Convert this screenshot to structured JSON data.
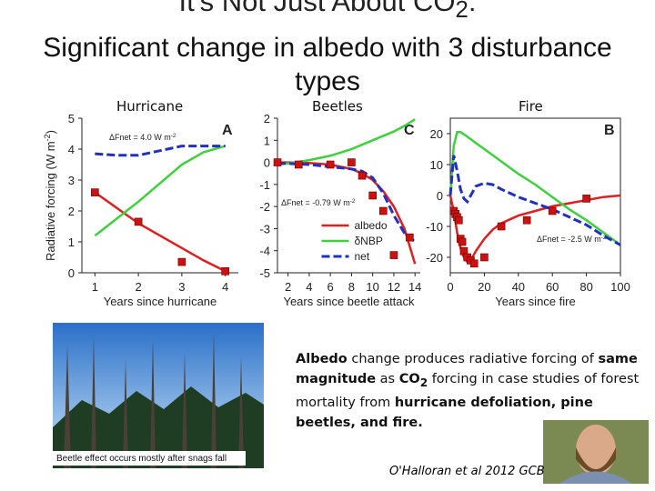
{
  "slide": {
    "title": [
      {
        "text": "It's Not Just About CO"
      },
      {
        "text": "2",
        "sub": true
      },
      {
        "text": ":"
      }
    ],
    "subtitle": "Significant change in albedo with 3 disturbance types",
    "panel_labels": [
      "Hurricane",
      "Beetles",
      "Fire"
    ],
    "photo_caption": "Beetle effect occurs mostly after snags fall",
    "summary": [
      {
        "text": "Albedo",
        "bold": true
      },
      {
        "text": " change produces radiative forcing of "
      },
      {
        "text": "same magnitude",
        "bold": true
      },
      {
        "text": " as "
      },
      {
        "text": "CO",
        "bold": true
      },
      {
        "text": "2",
        "bold": true,
        "sub": true
      },
      {
        "text": " forcing in case studies of forest mortality from "
      },
      {
        "text": "hurricane defoliation, pine beetles, and fire.",
        "bold": true
      }
    ],
    "citation": "O'Halloran et al 2012 GCB"
  },
  "chart_data": [
    {
      "type": "line",
      "letter": "A",
      "ylabel": [
        {
          "text": "Radiative forcing (W m"
        },
        {
          "text": "-2",
          "sup": true
        },
        {
          "text": ")"
        }
      ],
      "xlabel": "Years since hurricane",
      "annotation": [
        {
          "text": "ΔFnet = 4.0 W m"
        },
        {
          "text": "-2",
          "sup": true
        }
      ],
      "xlim": [
        0.7,
        4.3
      ],
      "xticks": [
        1,
        2,
        3,
        4
      ],
      "ylim": [
        0,
        5
      ],
      "yticks": [
        0,
        1,
        2,
        3,
        4,
        5
      ],
      "frame": false,
      "x": [
        1,
        1.5,
        2,
        2.5,
        3,
        3.5,
        4
      ],
      "series": [
        {
          "name": "albedo",
          "color": "#e02020",
          "values": [
            2.6,
            2.1,
            1.6,
            1.2,
            0.8,
            0.4,
            0.05
          ]
        },
        {
          "name": "δNBP",
          "color": "#3ed13e",
          "values": [
            1.2,
            1.75,
            2.3,
            2.9,
            3.5,
            3.9,
            4.1
          ]
        },
        {
          "name": "net",
          "color": "#2030c0",
          "dash": true,
          "values": [
            3.85,
            3.8,
            3.8,
            3.95,
            4.1,
            4.1,
            4.1
          ]
        }
      ],
      "observations": {
        "color": "#cc1111",
        "x": [
          1,
          2,
          3,
          4
        ],
        "values": [
          2.6,
          1.65,
          0.35,
          0.05
        ]
      }
    },
    {
      "type": "line",
      "letter": "C",
      "xlabel": "Years since beetle attack",
      "annotation": [
        {
          "text": "ΔFnet = -0.79 W m"
        },
        {
          "text": "-2",
          "sup": true
        }
      ],
      "xlim": [
        1,
        14.5
      ],
      "xticks": [
        2,
        4,
        6,
        8,
        10,
        12,
        14
      ],
      "ylim": [
        -5,
        2
      ],
      "yticks": [
        -5,
        -4,
        -3,
        -2,
        -1,
        0,
        1,
        2
      ],
      "frame": false,
      "legend": "lower center",
      "x": [
        1,
        2,
        4,
        6,
        8,
        9,
        10,
        11,
        12,
        13,
        14
      ],
      "series": [
        {
          "name": "albedo",
          "color": "#e02020",
          "values": [
            0,
            0,
            -0.03,
            -0.1,
            -0.3,
            -0.5,
            -0.8,
            -1.3,
            -2,
            -3,
            -4.6
          ]
        },
        {
          "name": "δNBP",
          "color": "#3ed13e",
          "values": [
            -0.1,
            -0.05,
            0.1,
            0.3,
            0.6,
            0.8,
            1,
            1.2,
            1.4,
            1.65,
            1.95
          ]
        },
        {
          "name": "net",
          "color": "#2030c0",
          "dash": true,
          "values": [
            -0.05,
            -0.05,
            -0.1,
            -0.2,
            -0.3,
            -0.4,
            -0.7,
            -1.4,
            -2.4,
            -3.2,
            -3.6
          ]
        }
      ],
      "observations": {
        "color": "#cc1111",
        "x": [
          1,
          3,
          6,
          8,
          9,
          10,
          11,
          12,
          13.5
        ],
        "values": [
          0,
          -0.1,
          -0.1,
          0,
          -0.6,
          -1.5,
          -2.2,
          -4.2,
          -3.4
        ]
      }
    },
    {
      "type": "line",
      "letter": "B",
      "xlabel": "Years since fire",
      "annotation": [
        {
          "text": "ΔFnet = -2.5 W m"
        },
        {
          "text": "-2",
          "sup": true
        }
      ],
      "xlim": [
        0,
        100
      ],
      "xticks": [
        0,
        20,
        40,
        60,
        80,
        100
      ],
      "ylim": [
        -25,
        25
      ],
      "yticks": [
        -20,
        -10,
        0,
        10,
        20
      ],
      "frame": true,
      "x": [
        0,
        2,
        4,
        6,
        8,
        10,
        12,
        15,
        20,
        25,
        30,
        40,
        50,
        60,
        70,
        80,
        90,
        100
      ],
      "series": [
        {
          "name": "albedo",
          "color": "#e02020",
          "values": [
            0,
            -5,
            -12,
            -17,
            -20,
            -21.5,
            -21,
            -18,
            -14,
            -11,
            -9,
            -6.5,
            -5,
            -3.5,
            -2.5,
            -1.5,
            -0.5,
            0
          ]
        },
        {
          "name": "δNBP",
          "color": "#3ed13e",
          "values": [
            0,
            16,
            20.5,
            20.5,
            19.8,
            19,
            18.2,
            17,
            15,
            13,
            11,
            7,
            3.5,
            -0.5,
            -4.5,
            -8,
            -12,
            -16
          ]
        },
        {
          "name": "net",
          "color": "#2030c0",
          "dash": true,
          "values": [
            0,
            13,
            8,
            2,
            -1,
            -2,
            0,
            3,
            4,
            3.5,
            2,
            -0.5,
            -2.5,
            -4.5,
            -7,
            -9.5,
            -13,
            -16
          ]
        }
      ],
      "observations": {
        "color": "#cc1111",
        "x": [
          2,
          3,
          4,
          5,
          6,
          7,
          8,
          10,
          12,
          14,
          20,
          30,
          45,
          60,
          80
        ],
        "values": [
          -5,
          -6,
          -7,
          -8,
          -14,
          -15,
          -18,
          -20,
          -21,
          -22,
          -20,
          -10,
          -8,
          -5,
          -1
        ]
      }
    }
  ]
}
